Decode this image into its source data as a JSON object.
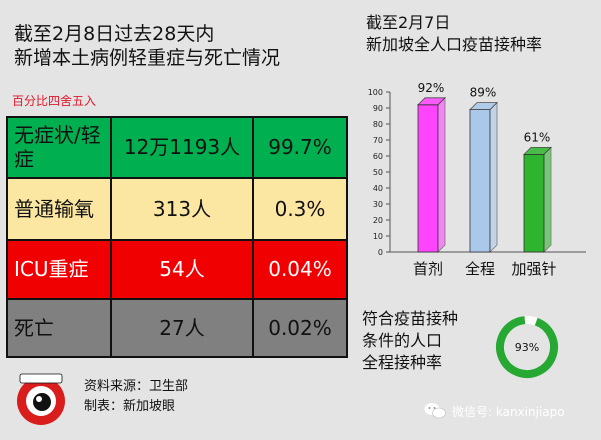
{
  "left_panel": {
    "title_line1": "截至2月8日过去28天内",
    "title_line2": "新增本土病例轻重症与死亡情况",
    "rounding_note": "百分比四舍五入",
    "rows": [
      {
        "label": "无症状/轻症",
        "count": "12万1193人",
        "percent": "99.7%"
      },
      {
        "label": "普通输氧",
        "count": "313人",
        "percent": "0.3%"
      },
      {
        "label": "ICU重症",
        "count": "54人",
        "percent": "0.04%"
      },
      {
        "label": "死亡",
        "count": "27人",
        "percent": "0.02%"
      }
    ],
    "source_line": "资料来源：卫生部",
    "maker_line": "制表：新加坡眼"
  },
  "right_panel": {
    "title_line1": "截至2月7日",
    "title_line2": "新加坡全人口疫苗接种率",
    "full_text_line1": "符合疫苗接种",
    "full_text_line2": "条件的人口",
    "full_text_line3": "全程接种率",
    "donut_label": "93%",
    "donut_value": 93,
    "donut_color": "#27a833"
  },
  "chart_data": {
    "type": "bar",
    "title": "新加坡全人口疫苗接种率",
    "categories": [
      "首剂",
      "全程",
      "加强针"
    ],
    "values": [
      92,
      89,
      61
    ],
    "value_labels": [
      "92%",
      "89%",
      "61%"
    ],
    "colors": [
      "#ff44ff",
      "#a9c8ea",
      "#2fb42f"
    ],
    "ylim": [
      0,
      100
    ],
    "yticks": [
      0,
      10,
      20,
      30,
      40,
      50,
      60,
      70,
      80,
      90,
      100
    ],
    "grid": false
  },
  "footer": {
    "wechat_label": "微信号: kanxinjiapo"
  },
  "colors": {
    "mild": "#00b050",
    "oxygen": "#fbe7a2",
    "icu": "#f00000",
    "death": "#808080",
    "note_red": "#e0182c",
    "background": "#e4e4e4"
  }
}
